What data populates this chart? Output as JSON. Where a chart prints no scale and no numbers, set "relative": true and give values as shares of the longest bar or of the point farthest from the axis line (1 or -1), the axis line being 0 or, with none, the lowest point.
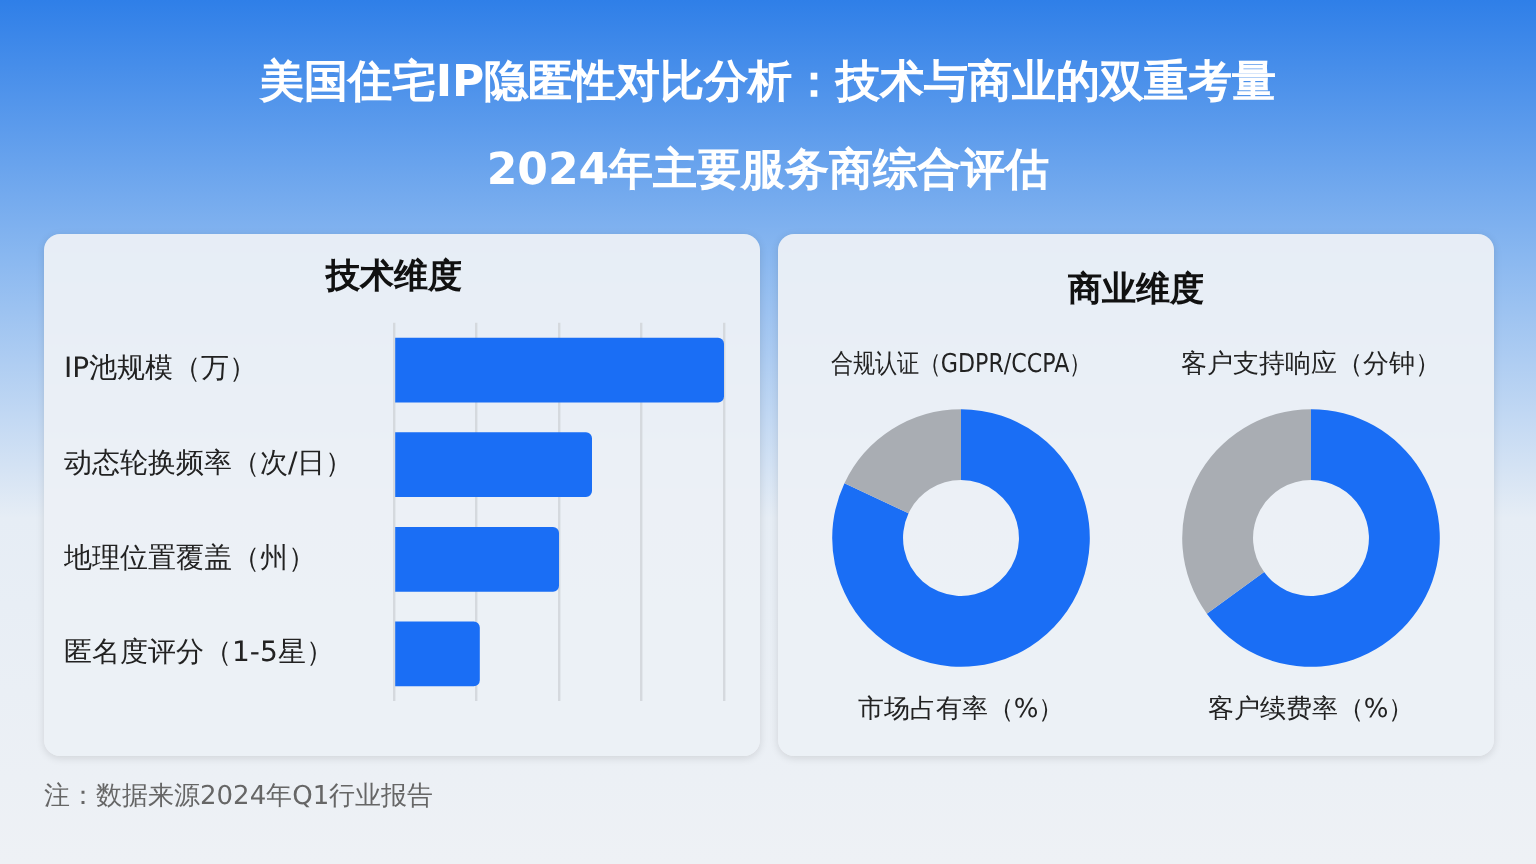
{
  "chart_data": [
    {
      "type": "other",
      "title": "美国住宅IP隐匿性对比分析：技术与商业的双重考量",
      "subtitle": "2024年主要服务商综合评估",
      "annotations": [
        "注：数据来源2024年Q1行业报告"
      ]
    },
    {
      "type": "bar",
      "title": "技术维度",
      "orientation": "horizontal",
      "relative": true,
      "grid": "x",
      "categories": [
        "IP池规模（万）",
        "动态轮换频率（次/日）",
        "地理位置覆盖（州）",
        "匿名度评分（1-5星）"
      ],
      "values": [
        1,
        0.6,
        0.5,
        0.26
      ],
      "color": "#1a6ef5"
    },
    {
      "type": "other",
      "title": "商业维度"
    },
    {
      "type": "donut",
      "title": "合规认证（GDPR/CCPA）",
      "xlabel": "市场占有率（%）",
      "categories": [
        null,
        null
      ],
      "values": [
        82,
        18
      ],
      "colors": [
        "#1a6ef5",
        "#a9adb3"
      ]
    },
    {
      "type": "donut",
      "title": "客户支持响应（分钟）",
      "xlabel": "客户续费率（%）",
      "categories": [
        null,
        null
      ],
      "values": [
        65,
        35
      ],
      "colors": [
        "#1a6ef5",
        "#a9adb3"
      ]
    }
  ]
}
